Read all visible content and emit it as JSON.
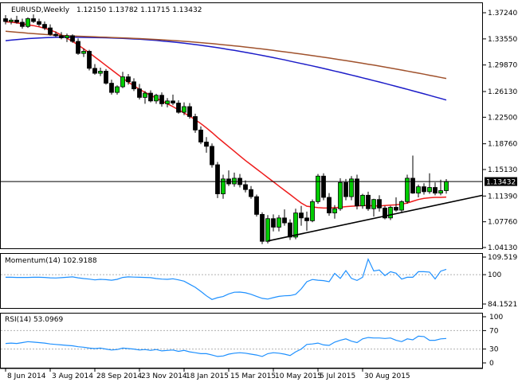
{
  "chart_data": [
    {
      "type": "candlestick",
      "symbol": "EURUSD,Weekly",
      "ohlc_text": "1.12150 1.13782 1.11715 1.13432",
      "last_price": "1.13432",
      "ylim": [
        1.0413,
        1.3724
      ],
      "y_ticks": [
        "1.37240",
        "1.33550",
        "1.29870",
        "1.26130",
        "1.22500",
        "1.18760",
        "1.15130",
        "1.11390",
        "1.07760",
        "1.04130"
      ],
      "x_ticks": [
        "8 Jun 2014",
        "3 Aug 2014",
        "28 Sep 2014",
        "23 Nov 2014",
        "18 Jan 2015",
        "15 Mar 2015",
        "10 May 2015",
        "5 Jul 2015",
        "30 Aug 2015"
      ],
      "candles": [
        [
          1.364,
          1.369,
          1.356,
          1.36
        ],
        [
          1.36,
          1.365,
          1.356,
          1.362
        ],
        [
          1.362,
          1.368,
          1.357,
          1.359
        ],
        [
          1.359,
          1.364,
          1.35,
          1.353
        ],
        [
          1.353,
          1.366,
          1.351,
          1.364
        ],
        [
          1.364,
          1.37,
          1.358,
          1.36
        ],
        [
          1.36,
          1.364,
          1.353,
          1.356
        ],
        [
          1.356,
          1.36,
          1.348,
          1.351
        ],
        [
          1.351,
          1.356,
          1.34,
          1.342
        ],
        [
          1.342,
          1.346,
          1.338,
          1.34
        ],
        [
          1.34,
          1.345,
          1.335,
          1.337
        ],
        [
          1.337,
          1.343,
          1.331,
          1.34
        ],
        [
          1.34,
          1.342,
          1.33,
          1.332
        ],
        [
          1.332,
          1.336,
          1.313,
          1.315
        ],
        [
          1.315,
          1.322,
          1.31,
          1.318
        ],
        [
          1.318,
          1.32,
          1.291,
          1.294
        ],
        [
          1.294,
          1.3,
          1.285,
          1.287
        ],
        [
          1.287,
          1.295,
          1.283,
          1.29
        ],
        [
          1.29,
          1.293,
          1.271,
          1.273
        ],
        [
          1.273,
          1.278,
          1.257,
          1.26
        ],
        [
          1.26,
          1.27,
          1.257,
          1.268
        ],
        [
          1.268,
          1.289,
          1.266,
          1.282
        ],
        [
          1.282,
          1.286,
          1.271,
          1.275
        ],
        [
          1.275,
          1.28,
          1.262,
          1.265
        ],
        [
          1.265,
          1.272,
          1.25,
          1.253
        ],
        [
          1.253,
          1.262,
          1.244,
          1.259
        ],
        [
          1.259,
          1.263,
          1.246,
          1.248
        ],
        [
          1.248,
          1.258,
          1.244,
          1.256
        ],
        [
          1.256,
          1.26,
          1.24,
          1.244
        ],
        [
          1.244,
          1.252,
          1.239,
          1.248
        ],
        [
          1.248,
          1.257,
          1.242,
          1.245
        ],
        [
          1.245,
          1.249,
          1.23,
          1.232
        ],
        [
          1.232,
          1.246,
          1.228,
          1.24
        ],
        [
          1.24,
          1.245,
          1.223,
          1.226
        ],
        [
          1.226,
          1.23,
          1.203,
          1.207
        ],
        [
          1.207,
          1.212,
          1.187,
          1.19
        ],
        [
          1.19,
          1.197,
          1.175,
          1.184
        ],
        [
          1.184,
          1.188,
          1.154,
          1.158
        ],
        [
          1.158,
          1.162,
          1.111,
          1.117
        ],
        [
          1.117,
          1.144,
          1.11,
          1.138
        ],
        [
          1.138,
          1.15,
          1.128,
          1.131
        ],
        [
          1.131,
          1.147,
          1.127,
          1.139
        ],
        [
          1.139,
          1.145,
          1.126,
          1.13
        ],
        [
          1.13,
          1.136,
          1.119,
          1.123
        ],
        [
          1.123,
          1.128,
          1.11,
          1.113
        ],
        [
          1.113,
          1.116,
          1.085,
          1.088
        ],
        [
          1.088,
          1.091,
          1.046,
          1.05
        ],
        [
          1.05,
          1.087,
          1.047,
          1.082
        ],
        [
          1.082,
          1.088,
          1.064,
          1.07
        ],
        [
          1.07,
          1.087,
          1.064,
          1.083
        ],
        [
          1.083,
          1.095,
          1.072,
          1.076
        ],
        [
          1.076,
          1.081,
          1.052,
          1.056
        ],
        [
          1.056,
          1.096,
          1.053,
          1.09
        ],
        [
          1.09,
          1.1,
          1.072,
          1.083
        ],
        [
          1.083,
          1.092,
          1.065,
          1.079
        ],
        [
          1.079,
          1.109,
          1.077,
          1.106
        ],
        [
          1.106,
          1.145,
          1.103,
          1.142
        ],
        [
          1.142,
          1.146,
          1.108,
          1.112
        ],
        [
          1.112,
          1.118,
          1.086,
          1.09
        ],
        [
          1.09,
          1.101,
          1.082,
          1.096
        ],
        [
          1.096,
          1.139,
          1.093,
          1.133
        ],
        [
          1.133,
          1.138,
          1.108,
          1.113
        ],
        [
          1.113,
          1.142,
          1.108,
          1.138
        ],
        [
          1.138,
          1.144,
          1.095,
          1.1
        ],
        [
          1.1,
          1.117,
          1.096,
          1.115
        ],
        [
          1.115,
          1.12,
          1.093,
          1.096
        ],
        [
          1.096,
          1.11,
          1.085,
          1.109
        ],
        [
          1.109,
          1.115,
          1.092,
          1.097
        ],
        [
          1.097,
          1.1,
          1.081,
          1.083
        ],
        [
          1.083,
          1.1,
          1.08,
          1.098
        ],
        [
          1.098,
          1.112,
          1.092,
          1.094
        ],
        [
          1.094,
          1.108,
          1.09,
          1.106
        ],
        [
          1.106,
          1.144,
          1.103,
          1.139
        ],
        [
          1.139,
          1.171,
          1.117,
          1.118
        ],
        [
          1.118,
          1.13,
          1.112,
          1.127
        ],
        [
          1.127,
          1.132,
          1.116,
          1.12
        ],
        [
          1.12,
          1.146,
          1.117,
          1.126
        ],
        [
          1.126,
          1.133,
          1.115,
          1.118
        ],
        [
          1.118,
          1.137,
          1.115,
          1.1215
        ],
        [
          1.1215,
          1.1378,
          1.1172,
          1.1343
        ]
      ],
      "moving_averages": [
        {
          "color": "#ee1c1c",
          "values": [
            1.3595,
            1.3592,
            1.3582,
            1.3568,
            1.3555,
            1.3542,
            1.3525,
            1.3505,
            1.348,
            1.345,
            1.341,
            1.3365,
            1.332,
            1.327,
            1.3215,
            1.316,
            1.31,
            1.304,
            1.298,
            1.292,
            1.286,
            1.28,
            1.2745,
            1.2695,
            1.2645,
            1.26,
            1.256,
            1.252,
            1.248,
            1.244,
            1.24,
            1.2355,
            1.231,
            1.2265,
            1.2215,
            1.216,
            1.21,
            1.2035,
            1.1965,
            1.19,
            1.1835,
            1.177,
            1.1705,
            1.164,
            1.158,
            1.152,
            1.146,
            1.14,
            1.134,
            1.128,
            1.122,
            1.116,
            1.11,
            1.104,
            1.0995,
            1.0985,
            1.0975,
            1.097,
            1.097,
            1.0975,
            1.098,
            1.099,
            1.0995,
            1.1,
            1.1005,
            1.1005,
            1.1,
            1.1,
            1.1005,
            1.101,
            1.1015,
            1.1025,
            1.104,
            1.1065,
            1.109,
            1.1105,
            1.1115,
            1.112,
            1.112,
            1.1125
          ]
        },
        {
          "color": "#1c1cc8",
          "values": [
            1.333,
            1.3338,
            1.3346,
            1.3353,
            1.3359,
            1.3364,
            1.3368,
            1.3372,
            1.3375,
            1.3377,
            1.3378,
            1.3378,
            1.3378,
            1.3377,
            1.3376,
            1.3375,
            1.3374,
            1.3372,
            1.337,
            1.3368,
            1.3365,
            1.3362,
            1.3358,
            1.3354,
            1.335,
            1.3345,
            1.3339,
            1.3333,
            1.3326,
            1.3319,
            1.3311,
            1.3303,
            1.3294,
            1.3285,
            1.3275,
            1.3265,
            1.3254,
            1.3243,
            1.3231,
            1.3219,
            1.3206,
            1.3193,
            1.318,
            1.3166,
            1.3152,
            1.3137,
            1.3122,
            1.3107,
            1.3091,
            1.3075,
            1.3059,
            1.3042,
            1.3025,
            1.3008,
            1.2991,
            1.2974,
            1.2956,
            1.2938,
            1.292,
            1.2901,
            1.2883,
            1.2864,
            1.2845,
            1.2826,
            1.2806,
            1.2787,
            1.2767,
            1.2747,
            1.2727,
            1.2706,
            1.2686,
            1.2665,
            1.2644,
            1.2623,
            1.2602,
            1.258,
            1.2559,
            1.2537,
            1.2515,
            1.2493
          ]
        },
        {
          "color": "#a0522d",
          "values": [
            1.3462,
            1.3456,
            1.3449,
            1.3443,
            1.3436,
            1.343,
            1.3424,
            1.3418,
            1.3413,
            1.3408,
            1.3404,
            1.34,
            1.3396,
            1.3393,
            1.339,
            1.3387,
            1.3384,
            1.3381,
            1.3378,
            1.3375,
            1.3372,
            1.3369,
            1.3366,
            1.3363,
            1.3359,
            1.3355,
            1.3351,
            1.3347,
            1.3342,
            1.3337,
            1.3332,
            1.3327,
            1.3321,
            1.3315,
            1.3309,
            1.3302,
            1.3295,
            1.3288,
            1.3281,
            1.3273,
            1.3265,
            1.3257,
            1.3249,
            1.324,
            1.3231,
            1.3222,
            1.3213,
            1.3203,
            1.3193,
            1.3183,
            1.3173,
            1.3163,
            1.3152,
            1.3141,
            1.313,
            1.3119,
            1.3108,
            1.3097,
            1.3085,
            1.3073,
            1.3061,
            1.3049,
            1.3037,
            1.3024,
            1.3011,
            1.2998,
            1.2985,
            1.2972,
            1.2958,
            1.2944,
            1.293,
            1.2916,
            1.2901,
            1.2887,
            1.2872,
            1.2857,
            1.2842,
            1.2827,
            1.2812,
            1.2797
          ]
        }
      ],
      "trendline": {
        "from": [
          47,
          1.0505
        ],
        "to": [
          85,
          1.1141
        ],
        "color": "#000000"
      },
      "horizontal_line": {
        "value": 1.13432,
        "color": "#000000"
      },
      "x_labels": [
        "8 Jun 2014",
        "3 Aug 2014",
        "28 Sep 2014",
        "23 Nov 2014",
        "18 Jan 2015",
        "15 Mar 2015",
        "10 May 2015",
        "5 Jul 2015",
        "30 Aug 2015"
      ],
      "x_label_index": [
        0,
        8,
        16,
        24,
        32,
        40,
        48,
        56,
        64
      ]
    },
    {
      "type": "line",
      "name": "Momentum(14) 102.9188",
      "ylim": [
        84.1521,
        109.5191
      ],
      "y_ticks": [
        "109.5191",
        "100",
        "84.1521"
      ],
      "reference_level": 100,
      "color": "#1e90ff",
      "values": [
        98.6,
        98.6,
        98.5,
        98.5,
        98.5,
        98.6,
        98.6,
        98.5,
        98.3,
        98.2,
        98.4,
        98.6,
        98.8,
        98.3,
        97.9,
        97.6,
        97.2,
        97.5,
        97.3,
        97.0,
        97.5,
        98.5,
        98.8,
        98.7,
        98.6,
        98.5,
        98.4,
        97.9,
        97.6,
        97.5,
        97.8,
        97.2,
        96.5,
        94.8,
        93.2,
        91.0,
        88.6,
        86.6,
        87.6,
        88.2,
        89.6,
        90.5,
        90.6,
        90.2,
        89.4,
        88.3,
        87.2,
        86.8,
        87.6,
        88.3,
        88.6,
        88.7,
        89.4,
        92.3,
        96.2,
        97.4,
        97.0,
        96.8,
        96.2,
        100.7,
        98.0,
        102.2,
        98.0,
        96.9,
        98.6,
        108.4,
        102.0,
        102.5,
        99.5,
        101.6,
        100.8,
        97.6,
        98.6,
        98.6,
        101.6,
        101.6,
        101.4,
        97.7,
        101.9,
        102.9
      ]
    },
    {
      "type": "line",
      "name": "RSI(14) 53.0969",
      "ylim": [
        0,
        100
      ],
      "y_ticks": [
        "100",
        "70",
        "30",
        "0"
      ],
      "levels": [
        70,
        30
      ],
      "color": "#1e90ff",
      "values": [
        42,
        43,
        42,
        44,
        46,
        45,
        44,
        43,
        41,
        40,
        39,
        38,
        37,
        35,
        34,
        32,
        31,
        32,
        30,
        28,
        29,
        32,
        31,
        30,
        28,
        29,
        27,
        29,
        26,
        27,
        28,
        25,
        27,
        24,
        22,
        20,
        20,
        17,
        14,
        15,
        19,
        21,
        22,
        21,
        19,
        17,
        14,
        20,
        22,
        21,
        19,
        16,
        24,
        30,
        40,
        41,
        43,
        39,
        38,
        45,
        49,
        52,
        47,
        44,
        52,
        55,
        54,
        54,
        53,
        54,
        49,
        46,
        52,
        50,
        58,
        57,
        49,
        49,
        52,
        53
      ]
    }
  ]
}
